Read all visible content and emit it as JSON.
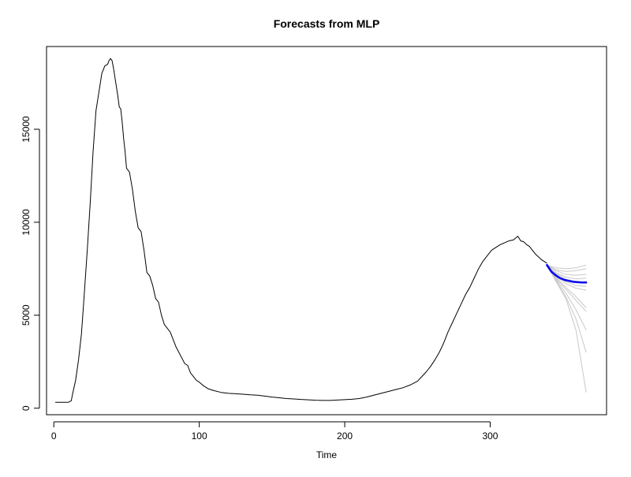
{
  "chart_data": {
    "type": "line",
    "title": "Forecasts from MLP",
    "xlabel": "Time",
    "ylabel": "",
    "xlim": [
      -5,
      380
    ],
    "ylim": [
      -350,
      19450
    ],
    "x_ticks": [
      0,
      100,
      200,
      300
    ],
    "x_tick_labels": [
      "0",
      "100",
      "200",
      "300"
    ],
    "y_ticks": [
      0,
      5000,
      10000,
      15000
    ],
    "y_tick_labels": [
      "0",
      "5000",
      "10000",
      "15000"
    ],
    "grid": false,
    "legend": "none",
    "colors": {
      "observed": "#000000",
      "forecast": "#0000ee",
      "simulations": "#c8c8c8"
    },
    "observed": {
      "x": [
        1,
        5,
        10,
        12,
        13,
        15,
        17,
        19,
        21,
        23,
        25,
        27,
        29,
        31,
        33,
        35,
        37,
        38,
        39,
        40,
        41,
        42,
        43,
        44,
        45,
        46,
        47,
        48,
        49,
        50,
        52,
        54,
        56,
        58,
        60,
        62,
        64,
        66,
        68,
        70,
        72,
        74,
        76,
        78,
        80,
        82,
        84,
        86,
        88,
        90,
        92,
        94,
        96,
        98,
        100,
        103,
        106,
        110,
        115,
        120,
        125,
        130,
        135,
        140,
        145,
        150,
        155,
        160,
        165,
        170,
        175,
        180,
        185,
        190,
        195,
        200,
        205,
        210,
        215,
        220,
        225,
        230,
        235,
        240,
        245,
        250,
        253,
        256,
        259,
        262,
        265,
        268,
        271,
        274,
        277,
        280,
        283,
        286,
        289,
        292,
        295,
        298,
        301,
        304,
        307,
        310,
        313,
        316,
        319,
        321,
        323,
        325,
        327,
        329,
        331,
        333,
        335,
        337,
        339
      ],
      "y": [
        320,
        320,
        320,
        400,
        800,
        1500,
        2600,
        4000,
        6200,
        8500,
        11000,
        13800,
        16000,
        17000,
        18000,
        18400,
        18500,
        18700,
        18800,
        18700,
        18300,
        17800,
        17300,
        16800,
        16200,
        16100,
        15400,
        14500,
        13800,
        12900,
        12700,
        11800,
        10600,
        9700,
        9500,
        8500,
        7300,
        7100,
        6600,
        5900,
        5700,
        5000,
        4500,
        4300,
        4100,
        3700,
        3300,
        3000,
        2700,
        2400,
        2300,
        1900,
        1700,
        1500,
        1400,
        1200,
        1050,
        950,
        850,
        800,
        780,
        750,
        720,
        700,
        650,
        600,
        560,
        520,
        500,
        470,
        450,
        430,
        420,
        420,
        440,
        460,
        480,
        520,
        600,
        700,
        800,
        900,
        1000,
        1100,
        1250,
        1450,
        1700,
        1950,
        2250,
        2600,
        3000,
        3500,
        4100,
        4600,
        5100,
        5600,
        6100,
        6500,
        7000,
        7500,
        7900,
        8200,
        8500,
        8650,
        8800,
        8900,
        9000,
        9050,
        9250,
        9000,
        8950,
        8800,
        8700,
        8500,
        8300,
        8150,
        8000,
        7900,
        7800
      ]
    },
    "forecast": {
      "x": [
        339,
        342,
        345,
        348,
        351,
        354,
        357,
        360,
        363,
        366
      ],
      "y": [
        7700,
        7350,
        7150,
        7000,
        6900,
        6850,
        6800,
        6780,
        6760,
        6760
      ]
    },
    "simulations": [
      {
        "x": [
          339,
          345,
          352,
          359,
          366
        ],
        "y": [
          7700,
          7550,
          7500,
          7550,
          7700
        ]
      },
      {
        "x": [
          339,
          345,
          352,
          359,
          366
        ],
        "y": [
          7700,
          7450,
          7350,
          7400,
          7500
        ]
      },
      {
        "x": [
          339,
          345,
          352,
          359,
          366
        ],
        "y": [
          7700,
          7400,
          7200,
          7150,
          7200
        ]
      },
      {
        "x": [
          339,
          345,
          352,
          359,
          366
        ],
        "y": [
          7700,
          7300,
          7050,
          6950,
          7000
        ]
      },
      {
        "x": [
          339,
          345,
          352,
          359,
          366
        ],
        "y": [
          7700,
          7250,
          6950,
          6800,
          6750
        ]
      },
      {
        "x": [
          339,
          345,
          352,
          359,
          366
        ],
        "y": [
          7700,
          7150,
          6800,
          6600,
          6550
        ]
      },
      {
        "x": [
          339,
          345,
          352,
          359,
          366
        ],
        "y": [
          7700,
          7100,
          6700,
          6450,
          6350
        ]
      },
      {
        "x": [
          339,
          345,
          352,
          359,
          366
        ],
        "y": [
          7700,
          7050,
          6500,
          6000,
          5400
        ]
      },
      {
        "x": [
          339,
          345,
          352,
          359,
          366
        ],
        "y": [
          7700,
          7000,
          6400,
          5800,
          5200
        ]
      },
      {
        "x": [
          339,
          345,
          352,
          359,
          366
        ],
        "y": [
          7700,
          6950,
          6200,
          5300,
          4200
        ]
      },
      {
        "x": [
          339,
          345,
          352,
          359,
          366
        ],
        "y": [
          7700,
          6900,
          6000,
          4800,
          3000
        ]
      },
      {
        "x": [
          339,
          345,
          352,
          359,
          366
        ],
        "y": [
          7700,
          6850,
          5900,
          4200,
          850
        ]
      }
    ]
  }
}
